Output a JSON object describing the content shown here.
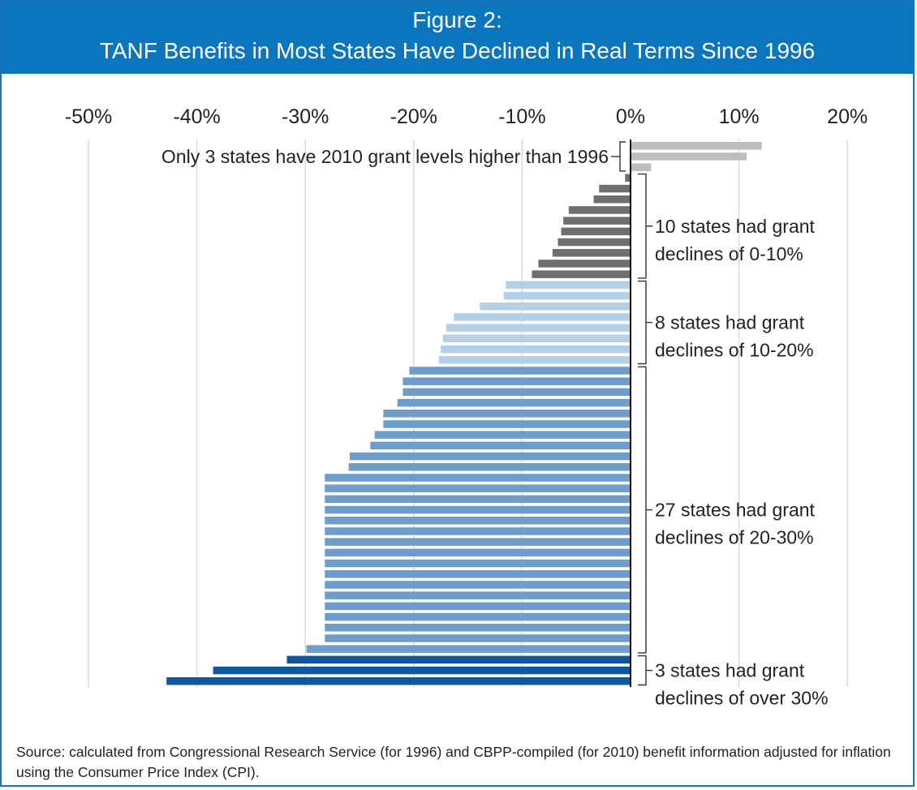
{
  "header": {
    "figure_label": "Figure 2:",
    "title": "TANF Benefits in Most States Have Declined in Real Terms Since 1996"
  },
  "colors": {
    "header_bg": "#0b76bd",
    "gridline": "#d9d9d9",
    "increase": "#bdbdbd",
    "decline_0_10": "#6f6f6f",
    "decline_10_20": "#b4cfe6",
    "decline_20_30": "#6e9ccb",
    "decline_over_30": "#0e58a0"
  },
  "chart_data": {
    "type": "bar",
    "orientation": "horizontal",
    "title": "TANF Benefits in Most States Have Declined in Real Terms Since 1996",
    "xlabel": "",
    "ylabel": "",
    "xlim": [
      -52,
      20
    ],
    "x_ticks": [
      "-50%",
      "-40%",
      "-30%",
      "-20%",
      "-10%",
      "0%",
      "10%",
      "20%"
    ],
    "x_tick_values": [
      -50,
      -40,
      -30,
      -20,
      -10,
      0,
      10,
      20
    ],
    "grid": true,
    "groups": [
      {
        "label": "Only 3 states have 2010 grant levels higher than 1996",
        "color_key": "increase",
        "values": [
          12.1,
          10.7,
          1.9
        ]
      },
      {
        "label_lines": [
          "10 states had grant",
          "declines of 0-10%"
        ],
        "color_key": "decline_0_10",
        "values": [
          -0.5,
          -2.9,
          -3.4,
          -5.7,
          -6.2,
          -6.4,
          -6.7,
          -7.2,
          -8.5,
          -9.1
        ]
      },
      {
        "label_lines": [
          "8 states had grant",
          "declines of 10-20%"
        ],
        "color_key": "decline_10_20",
        "values": [
          -11.5,
          -11.7,
          -13.9,
          -16.3,
          -17.0,
          -17.3,
          -17.5,
          -17.7
        ]
      },
      {
        "label_lines": [
          "27 states had grant",
          "declines of 20-30%"
        ],
        "color_key": "decline_20_30",
        "values": [
          -20.4,
          -21.0,
          -21.0,
          -21.5,
          -22.8,
          -22.8,
          -23.6,
          -24.0,
          -25.9,
          -26.0,
          -28.2,
          -28.2,
          -28.2,
          -28.2,
          -28.2,
          -28.2,
          -28.2,
          -28.2,
          -28.2,
          -28.2,
          -28.2,
          -28.2,
          -28.2,
          -28.2,
          -28.2,
          -28.2,
          -29.9
        ]
      },
      {
        "label_lines": [
          "3 states had grant",
          "declines of over 30%"
        ],
        "color_key": "decline_over_30",
        "values": [
          -31.7,
          -38.5,
          -42.8
        ]
      }
    ]
  },
  "source": "Source: calculated from Congressional Research Service (for 1996) and CBPP-compiled (for 2010) benefit information adjusted for inflation using the Consumer Price Index (CPI)."
}
